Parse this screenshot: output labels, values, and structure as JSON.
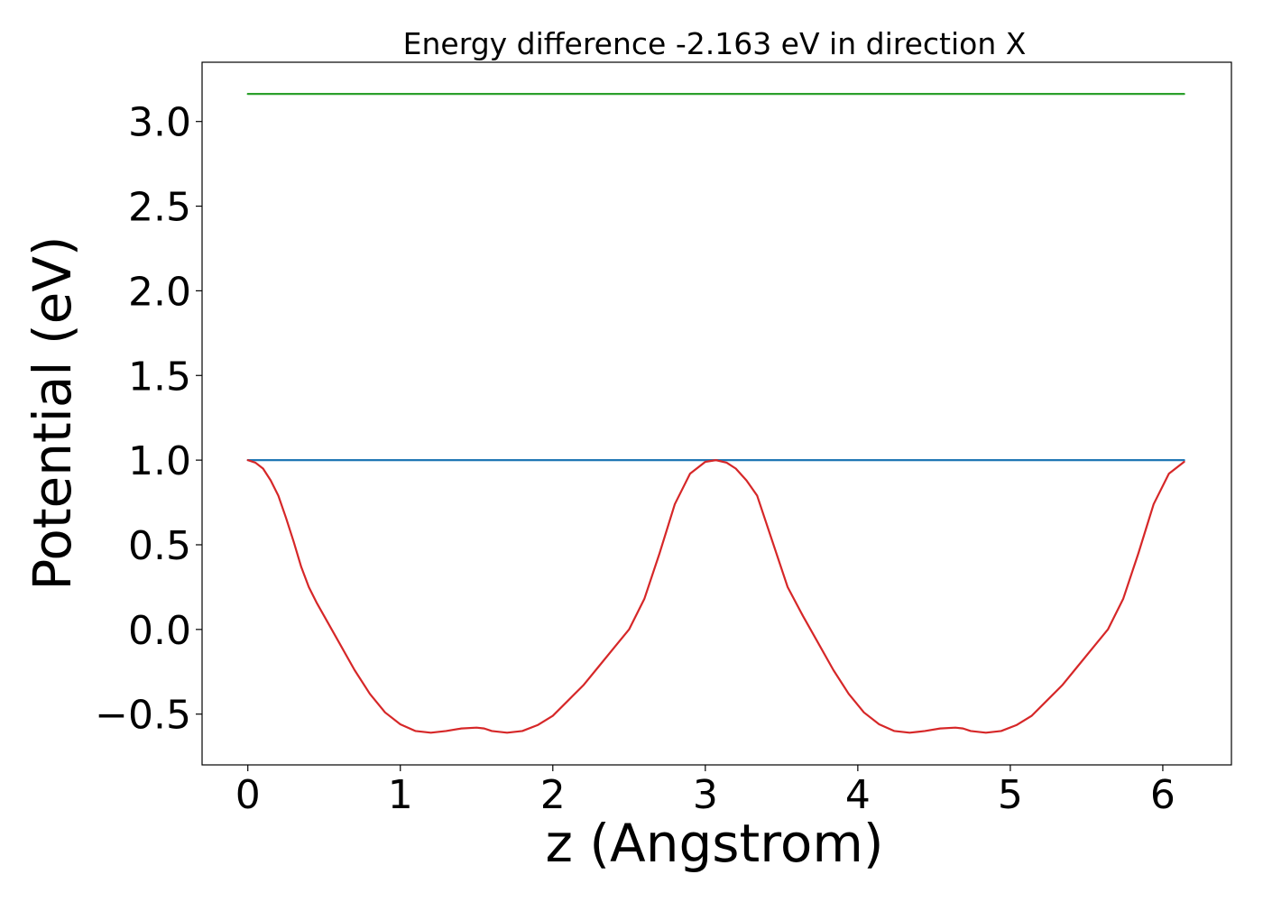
{
  "chart_data": {
    "type": "line",
    "title": "Energy difference -2.163 eV in direction X",
    "xlabel": "z (Angstrom)",
    "ylabel": "Potential (eV)",
    "xlim": [
      -0.3,
      6.45
    ],
    "ylim": [
      -0.8,
      3.35
    ],
    "xticks": [
      0,
      1,
      2,
      3,
      4,
      5,
      6
    ],
    "xtick_labels": [
      "0",
      "1",
      "2",
      "3",
      "4",
      "5",
      "6"
    ],
    "yticks": [
      -0.5,
      0.0,
      0.5,
      1.0,
      1.5,
      2.0,
      2.5,
      3.0
    ],
    "ytick_labels": [
      "−0.5",
      "0.0",
      "0.5",
      "1.0",
      "1.5",
      "2.0",
      "2.5",
      "3.0"
    ],
    "grid": false,
    "legend": "none",
    "series": [
      {
        "color": "#2ca02c",
        "x": [
          0,
          6.14
        ],
        "y": [
          3.163,
          3.163
        ]
      },
      {
        "color": "#1f77b4",
        "x": [
          0,
          6.14
        ],
        "y": [
          1.0,
          1.0
        ]
      },
      {
        "color": "#d62728",
        "x": [
          0.0,
          0.05,
          0.1,
          0.15,
          0.2,
          0.25,
          0.3,
          0.35,
          0.4,
          0.45,
          0.5,
          0.55,
          0.6,
          0.7,
          0.8,
          0.9,
          1.0,
          1.1,
          1.2,
          1.3,
          1.4,
          1.5,
          1.55,
          1.6,
          1.7,
          1.8,
          1.9,
          2.0,
          2.1,
          2.2,
          2.3,
          2.4,
          2.5,
          2.6,
          2.7,
          2.8,
          2.9,
          3.0,
          3.07,
          3.14,
          3.2,
          3.27,
          3.34,
          3.44,
          3.54,
          3.64,
          3.74,
          3.84,
          3.94,
          4.04,
          4.14,
          4.24,
          4.34,
          4.44,
          4.54,
          4.64,
          4.69,
          4.74,
          4.84,
          4.94,
          5.04,
          5.14,
          5.24,
          5.34,
          5.44,
          5.54,
          5.64,
          5.74,
          5.84,
          5.94,
          6.04,
          6.14
        ],
        "y": [
          1.0,
          0.985,
          0.95,
          0.88,
          0.79,
          0.66,
          0.52,
          0.37,
          0.25,
          0.16,
          0.08,
          0.0,
          -0.08,
          -0.24,
          -0.38,
          -0.49,
          -0.56,
          -0.6,
          -0.61,
          -0.6,
          -0.585,
          -0.58,
          -0.585,
          -0.6,
          -0.61,
          -0.6,
          -0.565,
          -0.51,
          -0.42,
          -0.33,
          -0.22,
          -0.11,
          0.0,
          0.18,
          0.45,
          0.74,
          0.92,
          0.99,
          1.0,
          0.985,
          0.95,
          0.88,
          0.79,
          0.52,
          0.25,
          0.08,
          -0.08,
          -0.24,
          -0.38,
          -0.49,
          -0.56,
          -0.6,
          -0.61,
          -0.6,
          -0.585,
          -0.58,
          -0.585,
          -0.6,
          -0.61,
          -0.6,
          -0.565,
          -0.51,
          -0.42,
          -0.33,
          -0.22,
          -0.11,
          0.0,
          0.18,
          0.45,
          0.74,
          0.92,
          0.99
        ]
      }
    ]
  }
}
